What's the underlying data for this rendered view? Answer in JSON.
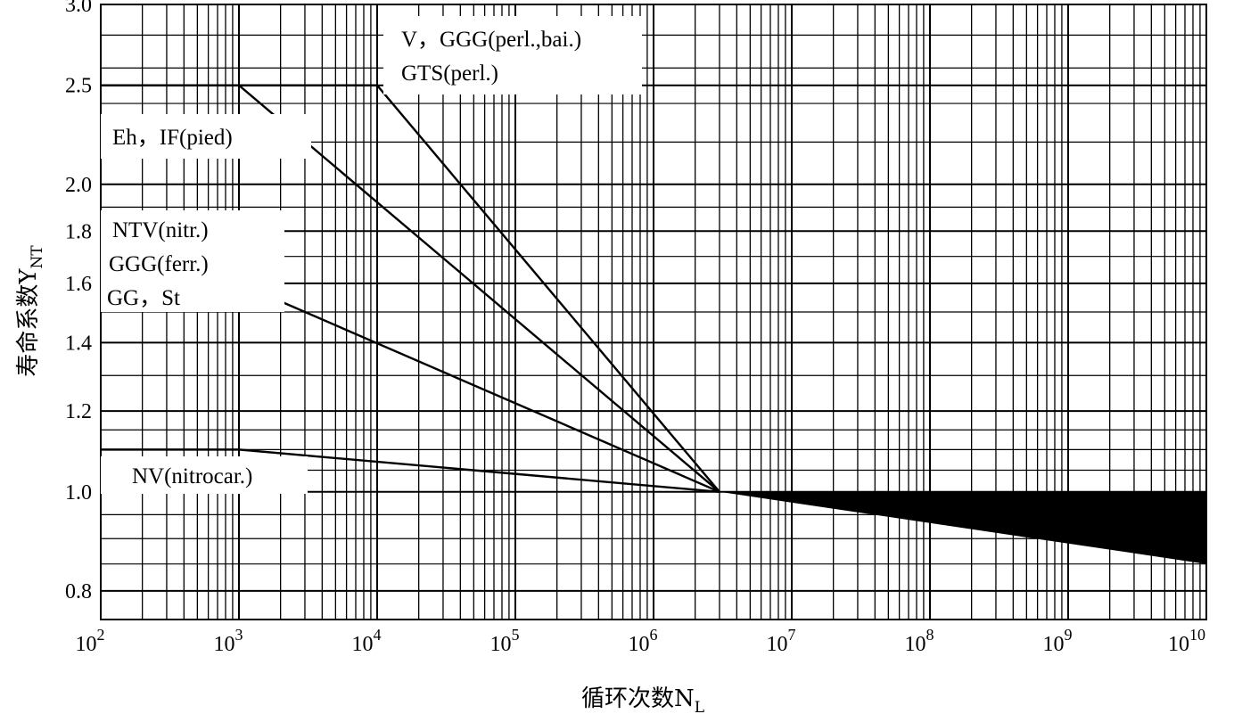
{
  "chart_data": {
    "type": "line",
    "title": "",
    "xlabel": "循环次数N",
    "xlabel_sub": "L",
    "ylabel": "寿命系数Y",
    "ylabel_sub": "NT",
    "x_scale": "log",
    "y_scale": "log",
    "xlim": [
      100,
      10000000000
    ],
    "ylim": [
      0.75,
      3.0
    ],
    "grid": true,
    "x_ticks": [
      {
        "value": 100,
        "base": "10",
        "exp": "2"
      },
      {
        "value": 1000,
        "base": "10",
        "exp": "3"
      },
      {
        "value": 10000,
        "base": "10",
        "exp": "4"
      },
      {
        "value": 100000,
        "base": "10",
        "exp": "5"
      },
      {
        "value": 1000000,
        "base": "10",
        "exp": "6"
      },
      {
        "value": 10000000,
        "base": "10",
        "exp": "7"
      },
      {
        "value": 100000000,
        "base": "10",
        "exp": "8"
      },
      {
        "value": 1000000000,
        "base": "10",
        "exp": "9"
      },
      {
        "value": 10000000000,
        "base": "10",
        "exp": "10"
      }
    ],
    "y_ticks": [
      {
        "value": 0.8,
        "label": "0.8"
      },
      {
        "value": 1.0,
        "label": "1.0"
      },
      {
        "value": 1.2,
        "label": "1.2"
      },
      {
        "value": 1.4,
        "label": "1.4"
      },
      {
        "value": 1.6,
        "label": "1.6"
      },
      {
        "value": 1.8,
        "label": "1.8"
      },
      {
        "value": 2.0,
        "label": "2.0"
      },
      {
        "value": 2.5,
        "label": "2.5"
      },
      {
        "value": 3.0,
        "label": "3.0"
      }
    ],
    "series": [
      {
        "labels": [
          "V，GGG(perl.,bai.)",
          "GTS(perl.)"
        ],
        "x": [
          100,
          10000,
          3000000
        ],
        "y": [
          2.5,
          2.5,
          1.0
        ]
      },
      {
        "labels": [
          "Eh，IF(pied)"
        ],
        "x": [
          100,
          1000,
          3000000
        ],
        "y": [
          2.5,
          2.5,
          1.0
        ]
      },
      {
        "labels": [
          "NTV(nitr.)",
          "GGG(ferr.)",
          "GG，St"
        ],
        "x": [
          100,
          1000,
          3000000
        ],
        "y": [
          1.6,
          1.6,
          1.0
        ]
      },
      {
        "labels": [
          "NV(nitrocar.)"
        ],
        "x": [
          100,
          1000,
          3000000
        ],
        "y": [
          1.1,
          1.1,
          1.0
        ]
      }
    ],
    "band": {
      "x": [
        3000000,
        10000000000
      ],
      "upper": [
        1.0,
        1.0
      ],
      "lower": [
        1.0,
        0.85
      ]
    }
  }
}
